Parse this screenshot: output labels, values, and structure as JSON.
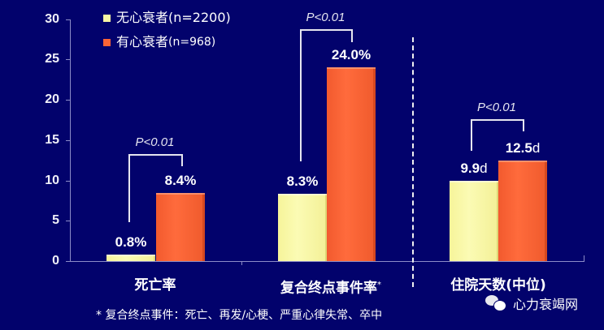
{
  "chart_data": {
    "type": "bar",
    "title": "",
    "xlabel": "",
    "ylabel": "",
    "ylim": [
      0,
      30
    ],
    "yticks": [
      0,
      5,
      10,
      15,
      20,
      25,
      30
    ],
    "categories": [
      "死亡率",
      "复合终点事件率*",
      "住院天数(中位)"
    ],
    "series": [
      {
        "name": "无心衰者(n=2200)",
        "color": "#f8f6a4",
        "values": [
          0.8,
          8.3,
          9.9
        ],
        "labels": [
          "0.8%",
          "8.3%",
          "9.9d"
        ]
      },
      {
        "name": "有心衰者(n=968)",
        "color": "#fb6436",
        "values": [
          8.4,
          24.0,
          12.5
        ],
        "labels": [
          "8.4%",
          "24.0%",
          "12.5d"
        ]
      }
    ],
    "annotations": [
      {
        "category": "死亡率",
        "text": "P<0.01"
      },
      {
        "category": "复合终点事件率*",
        "text": "P<0.01"
      },
      {
        "category": "住院天数(中位)",
        "text": "P<0.01"
      }
    ],
    "legend_position": "top-left",
    "grid": false,
    "separator": "dashed vertical line between 2nd and 3rd category"
  },
  "yaxis": {
    "ticks": [
      "0",
      "5",
      "10",
      "15",
      "20",
      "25",
      "30"
    ]
  },
  "legend": {
    "items": [
      {
        "label_cn": "无心衰者",
        "label_n": "(n=2200)",
        "color": "#f8f6a4"
      },
      {
        "label_cn": "有心衰者",
        "label_n": "(n=968)",
        "color": "#fb6436"
      }
    ]
  },
  "groups": [
    {
      "category": "死亡率",
      "sup": "",
      "p_value": "P<0.01",
      "a": {
        "value": 0.8,
        "num": "0.8",
        "unit": "%"
      },
      "b": {
        "value": 8.4,
        "num": "8.4",
        "unit": "%"
      }
    },
    {
      "category": "复合终点事件率",
      "sup": "*",
      "p_value": "P<0.01",
      "a": {
        "value": 8.3,
        "num": "8.3",
        "unit": "%"
      },
      "b": {
        "value": 24.0,
        "num": "24.0",
        "unit": "%"
      }
    },
    {
      "category": "住院天数(中位)",
      "sup": "",
      "p_value": "P<0.01",
      "a": {
        "value": 9.9,
        "num": "9.9",
        "unit": "d"
      },
      "b": {
        "value": 12.5,
        "num": "12.5",
        "unit": "d"
      }
    }
  ],
  "footnote": "* 复合终点事件：死亡、再发/心梗、严重心律失常、卒中",
  "watermark": {
    "icon": "wechat-icon",
    "text": "心力衰竭网"
  },
  "colors": {
    "background": "#02026c",
    "series_a": "#f8f6a4",
    "series_b": "#fb6436",
    "axis": "#8c8cc8"
  }
}
